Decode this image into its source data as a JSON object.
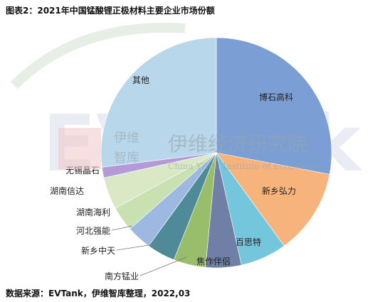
{
  "header": {
    "title": "图表2：2021年中国锰酸锂正极材料主要企业市场份额"
  },
  "footer": {
    "source": "数据来源：EVTank，伊维智库整理，2022,03"
  },
  "watermark": {
    "logo_text": "EVTank",
    "cn_short_top": "伊维",
    "cn_short_bottom": "智库",
    "cn_long": "伊维经济研究院",
    "en": "China YiWei Institute of Economics"
  },
  "chart_data": {
    "type": "pie",
    "title": "图表2：2021年中国锰酸锂正极材料主要企业市场份额",
    "start": "12 o'clock",
    "direction": "clockwise",
    "slices": [
      {
        "label": "博石高科",
        "value": 28.0,
        "color": "#7b9fd4"
      },
      {
        "label": "新乡弘力",
        "value": 12.0,
        "color": "#f7b37c"
      },
      {
        "label": "百思特",
        "value": 6.5,
        "color": "#74c6dc"
      },
      {
        "label": "焦作伴侣",
        "value": 5.0,
        "color": "#6f7fa6"
      },
      {
        "label": "南方锰业",
        "value": 4.5,
        "color": "#98be6b"
      },
      {
        "label": "新乡中天",
        "value": 4.0,
        "color": "#4f8a98"
      },
      {
        "label": "河北强能",
        "value": 3.5,
        "color": "#9db9e2"
      },
      {
        "label": "湖南海利",
        "value": 3.5,
        "color": "#c9e0b0"
      },
      {
        "label": "湖南信达",
        "value": 4.5,
        "color": "#dbe8c6"
      },
      {
        "label": "无锡晶石",
        "value": 1.5,
        "color": "#b49ad6"
      },
      {
        "label": "其他",
        "value": 27.0,
        "color": "#b9d7ea"
      }
    ]
  }
}
